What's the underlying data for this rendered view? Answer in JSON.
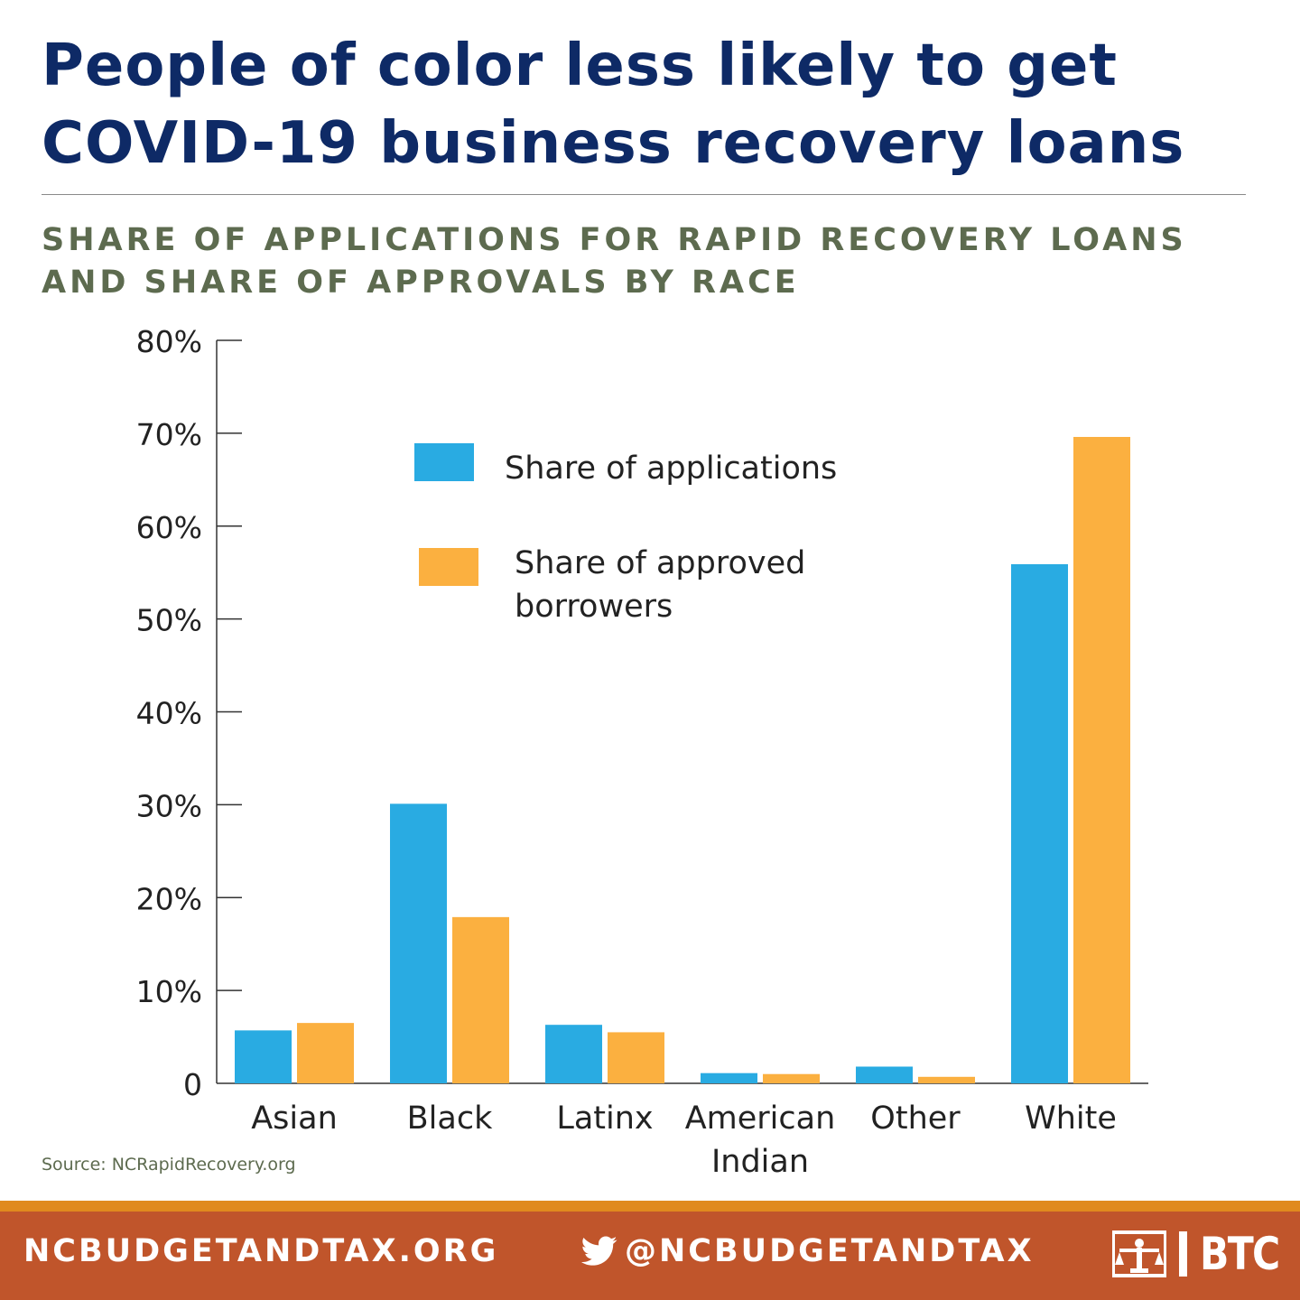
{
  "header": {
    "title": "People of color less likely to get COVID-19 business recovery loans",
    "subtitle": "SHARE OF APPLICATIONS FOR RAPID RECOVERY LOANS AND SHARE OF APPROVALS BY RACE"
  },
  "source": "Source: NCRapidRecovery.org",
  "footer": {
    "website": "NCBUDGETANDTAX.ORG",
    "twitter_handle": "@NCBUDGETANDTAX",
    "twitter_icon": "twitter-bird-icon",
    "logo_text": "BTC",
    "logo_icon": "scales-logo-icon"
  },
  "colors": {
    "title": "#0e2a66",
    "subtitle": "#5d6b4f",
    "applications": "#29abe2",
    "approved": "#fbb040",
    "footer_bg": "#c0552b",
    "footer_stripe": "#e08a1e"
  },
  "chart_data": {
    "type": "bar",
    "categories": [
      [
        "Asian"
      ],
      [
        "Black"
      ],
      [
        "Latinx"
      ],
      [
        "American",
        "Indian"
      ],
      [
        "Other"
      ],
      [
        "White"
      ]
    ],
    "series": [
      {
        "name": "Share of applications",
        "values": [
          5.7,
          30.1,
          6.3,
          1.1,
          1.8,
          55.9
        ]
      },
      {
        "name": "Share of approved borrowers",
        "values": [
          6.5,
          17.9,
          5.5,
          1.0,
          0.7,
          69.6
        ]
      }
    ],
    "legend": [
      [
        "Share of applications"
      ],
      [
        "Share of approved",
        "borrowers"
      ]
    ],
    "ylim": [
      0,
      80
    ],
    "yticks": [
      0,
      10,
      20,
      30,
      40,
      50,
      60,
      70,
      80
    ],
    "ytick_labels": [
      "0",
      "10%",
      "20%",
      "30%",
      "40%",
      "50%",
      "60%",
      "70%",
      "80%"
    ],
    "grid": false,
    "legend_position": "top-center"
  }
}
